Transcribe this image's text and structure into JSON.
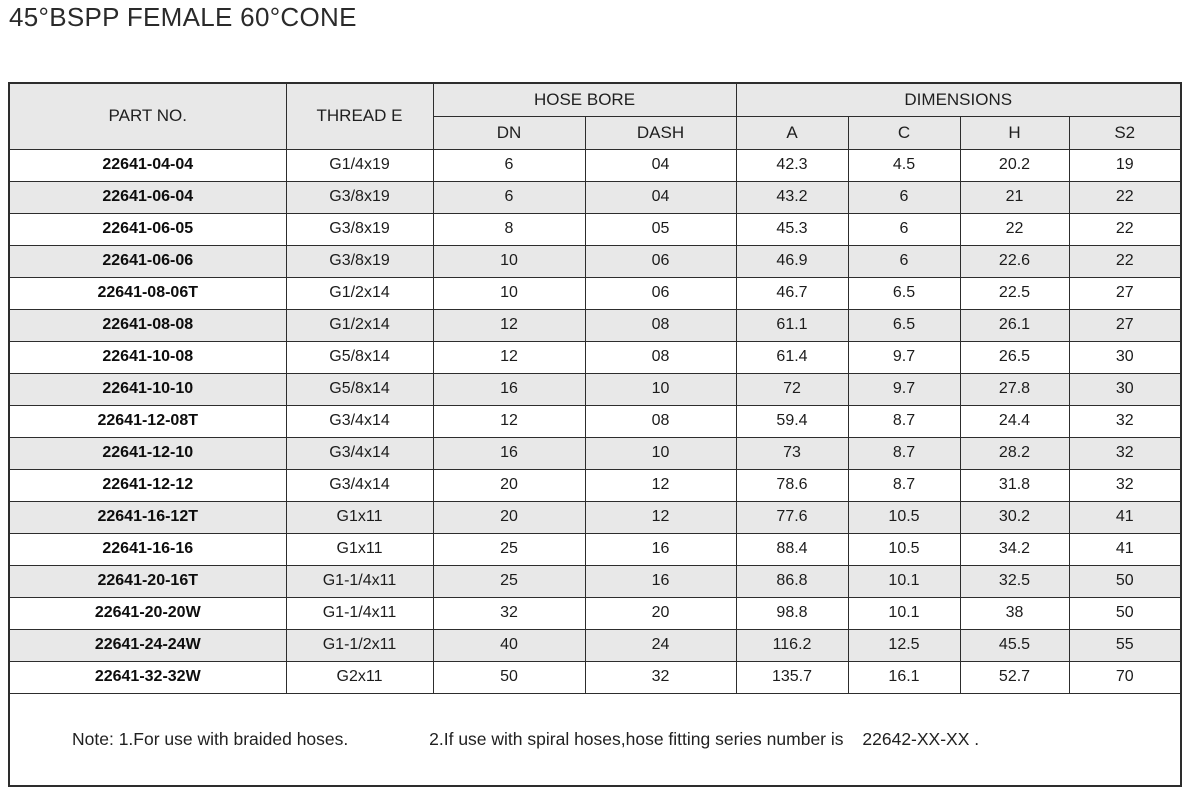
{
  "title": "45°BSPP FEMALE 60°CONE",
  "table": {
    "header": {
      "part_no": "PART NO.",
      "thread_e": "THREAD E",
      "hose_bore": "HOSE BORE",
      "dimensions": "DIMENSIONS",
      "sub": [
        "DN",
        "DASH",
        "A",
        "C",
        "H",
        "S2"
      ]
    },
    "columns": [
      "part_no",
      "thread_e",
      "dn",
      "dash",
      "a",
      "c",
      "h",
      "s2"
    ],
    "rows": [
      {
        "part_no": "22641-04-04",
        "thread_e": "G1/4x19",
        "dn": "6",
        "dash": "04",
        "a": "42.3",
        "c": "4.5",
        "h": "20.2",
        "s2": "19"
      },
      {
        "part_no": "22641-06-04",
        "thread_e": "G3/8x19",
        "dn": "6",
        "dash": "04",
        "a": "43.2",
        "c": "6",
        "h": "21",
        "s2": "22"
      },
      {
        "part_no": "22641-06-05",
        "thread_e": "G3/8x19",
        "dn": "8",
        "dash": "05",
        "a": "45.3",
        "c": "6",
        "h": "22",
        "s2": "22"
      },
      {
        "part_no": "22641-06-06",
        "thread_e": "G3/8x19",
        "dn": "10",
        "dash": "06",
        "a": "46.9",
        "c": "6",
        "h": "22.6",
        "s2": "22"
      },
      {
        "part_no": "22641-08-06T",
        "thread_e": "G1/2x14",
        "dn": "10",
        "dash": "06",
        "a": "46.7",
        "c": "6.5",
        "h": "22.5",
        "s2": "27"
      },
      {
        "part_no": "22641-08-08",
        "thread_e": "G1/2x14",
        "dn": "12",
        "dash": "08",
        "a": "61.1",
        "c": "6.5",
        "h": "26.1",
        "s2": "27"
      },
      {
        "part_no": "22641-10-08",
        "thread_e": "G5/8x14",
        "dn": "12",
        "dash": "08",
        "a": "61.4",
        "c": "9.7",
        "h": "26.5",
        "s2": "30"
      },
      {
        "part_no": "22641-10-10",
        "thread_e": "G5/8x14",
        "dn": "16",
        "dash": "10",
        "a": "72",
        "c": "9.7",
        "h": "27.8",
        "s2": "30"
      },
      {
        "part_no": "22641-12-08T",
        "thread_e": "G3/4x14",
        "dn": "12",
        "dash": "08",
        "a": "59.4",
        "c": "8.7",
        "h": "24.4",
        "s2": "32"
      },
      {
        "part_no": "22641-12-10",
        "thread_e": "G3/4x14",
        "dn": "16",
        "dash": "10",
        "a": "73",
        "c": "8.7",
        "h": "28.2",
        "s2": "32"
      },
      {
        "part_no": "22641-12-12",
        "thread_e": "G3/4x14",
        "dn": "20",
        "dash": "12",
        "a": "78.6",
        "c": "8.7",
        "h": "31.8",
        "s2": "32"
      },
      {
        "part_no": "22641-16-12T",
        "thread_e": "G1x11",
        "dn": "20",
        "dash": "12",
        "a": "77.6",
        "c": "10.5",
        "h": "30.2",
        "s2": "41"
      },
      {
        "part_no": "22641-16-16",
        "thread_e": "G1x11",
        "dn": "25",
        "dash": "16",
        "a": "88.4",
        "c": "10.5",
        "h": "34.2",
        "s2": "41"
      },
      {
        "part_no": "22641-20-16T",
        "thread_e": "G1-1/4x11",
        "dn": "25",
        "dash": "16",
        "a": "86.8",
        "c": "10.1",
        "h": "32.5",
        "s2": "50"
      },
      {
        "part_no": "22641-20-20W",
        "thread_e": "G1-1/4x11",
        "dn": "32",
        "dash": "20",
        "a": "98.8",
        "c": "10.1",
        "h": "38",
        "s2": "50"
      },
      {
        "part_no": "22641-24-24W",
        "thread_e": "G1-1/2x11",
        "dn": "40",
        "dash": "24",
        "a": "116.2",
        "c": "12.5",
        "h": "45.5",
        "s2": "55"
      },
      {
        "part_no": "22641-32-32W",
        "thread_e": "G2x11",
        "dn": "50",
        "dash": "32",
        "a": "135.7",
        "c": "16.1",
        "h": "52.7",
        "s2": "70"
      }
    ]
  },
  "notes": {
    "note1": "Note: 1.For use with braided hoses.",
    "note2": "2.If use with spiral hoses,hose fitting series number is",
    "note2_series": "22642-XX-XX ."
  },
  "colors": {
    "header_bg": "#e8e8e8",
    "alt_row_bg": "#e8e8e8",
    "border": "#2d2d2d",
    "text": "#1c1c1c"
  }
}
